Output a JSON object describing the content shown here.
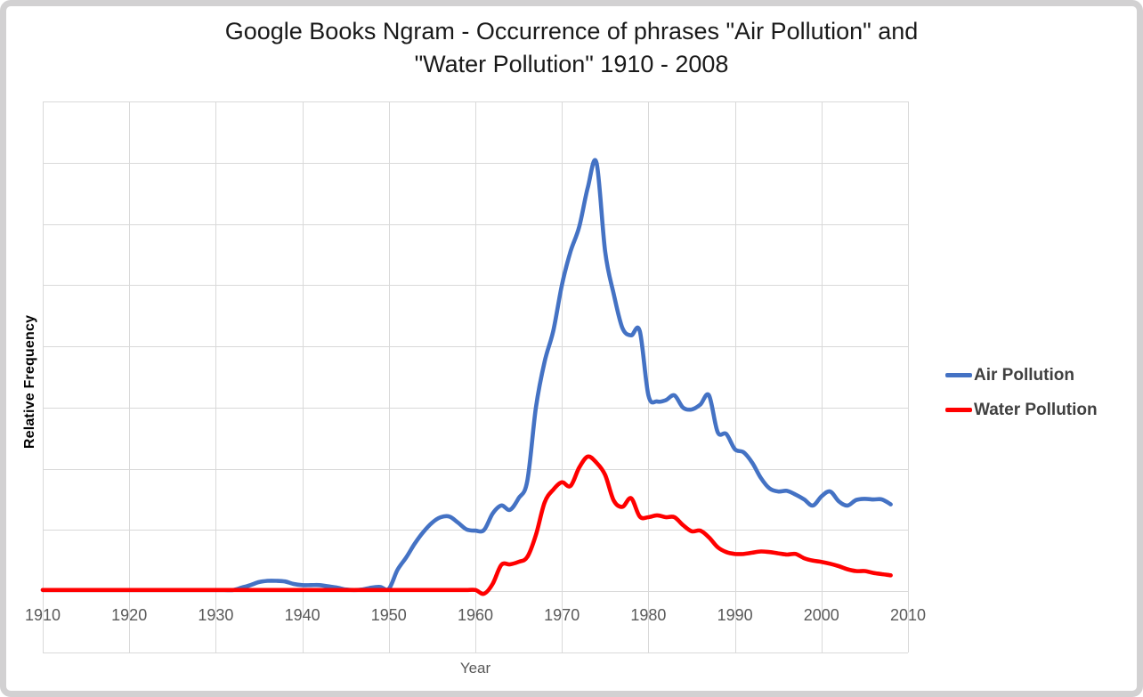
{
  "title": {
    "line1": "Google Books Ngram - Occurrence of phrases \"Air Pollution\" and",
    "line2": "\"Water Pollution\" 1910 - 2008"
  },
  "axes": {
    "x_title": "Year",
    "y_title": "Relative Frequency",
    "x_tick_labels": [
      "1910",
      "1920",
      "1930",
      "1940",
      "1950",
      "1960",
      "1970",
      "1980",
      "1990",
      "2000",
      "2010"
    ]
  },
  "legend": {
    "entries": [
      {
        "label": "Air Pollution",
        "color": "#4472C4"
      },
      {
        "label": "Water Pollution",
        "color": "#FF0000"
      }
    ]
  },
  "colors": {
    "background": "#FFFFFF",
    "frame": "#D2D1D2",
    "gridline": "#D9D9D9",
    "tick_label": "#595959",
    "x_axis_title": "#595959",
    "y_axis_title": "#000000",
    "title_text": "#1A1A1A",
    "legend_text": "#404040",
    "air_pollution_line": "#4472C4",
    "water_pollution_line": "#FF0000"
  },
  "chart_data": {
    "type": "line",
    "title": "Google Books Ngram - Occurrence of phrases \"Air Pollution\" and \"Water Pollution\" 1910 - 2008",
    "xlabel": "Year",
    "ylabel": "Relative Frequency",
    "x_start": 1910,
    "x_end": 2008,
    "xticks": [
      1910,
      1920,
      1930,
      1940,
      1950,
      1960,
      1970,
      1980,
      1990,
      2000,
      2010
    ],
    "ylim": [
      -1,
      8
    ],
    "y_gridline_step": 1,
    "y_tick_labels_visible": false,
    "grid": true,
    "line_style": "smooth",
    "legend_position": "right",
    "y_values_unit_note": "y-axis has no numeric labels; values below are in horizontal-gridline units read from the plot (0 = baseline gridline, 1 per gridline)",
    "series": [
      {
        "name": "Air Pollution",
        "color": "#4472C4",
        "values": [
          0.02,
          0.02,
          0.02,
          0.02,
          0.02,
          0.02,
          0.02,
          0.02,
          0.02,
          0.02,
          0.02,
          0.02,
          0.02,
          0.02,
          0.02,
          0.02,
          0.02,
          0.02,
          0.02,
          0.02,
          0.02,
          0.02,
          0.02,
          0.06,
          0.1,
          0.15,
          0.17,
          0.17,
          0.16,
          0.12,
          0.1,
          0.1,
          0.1,
          0.08,
          0.06,
          0.03,
          0.02,
          0.03,
          0.06,
          0.07,
          0.04,
          0.35,
          0.55,
          0.78,
          0.97,
          1.12,
          1.21,
          1.22,
          1.12,
          1.01,
          0.99,
          1.0,
          1.27,
          1.4,
          1.33,
          1.52,
          1.8,
          3.0,
          3.75,
          4.25,
          5.0,
          5.55,
          5.95,
          6.6,
          7.0,
          5.55,
          4.85,
          4.3,
          4.18,
          4.25,
          3.2,
          3.1,
          3.12,
          3.2,
          3.0,
          2.97,
          3.05,
          3.2,
          2.6,
          2.57,
          2.32,
          2.27,
          2.1,
          1.85,
          1.68,
          1.63,
          1.64,
          1.58,
          1.5,
          1.4,
          1.55,
          1.63,
          1.47,
          1.4,
          1.49,
          1.51,
          1.5,
          1.5,
          1.42
        ]
      },
      {
        "name": "Water Pollution",
        "color": "#FF0000",
        "values": [
          0.02,
          0.02,
          0.02,
          0.02,
          0.02,
          0.02,
          0.02,
          0.02,
          0.02,
          0.02,
          0.02,
          0.02,
          0.02,
          0.02,
          0.02,
          0.02,
          0.02,
          0.02,
          0.02,
          0.02,
          0.02,
          0.02,
          0.02,
          0.02,
          0.02,
          0.02,
          0.02,
          0.02,
          0.02,
          0.02,
          0.02,
          0.02,
          0.02,
          0.02,
          0.02,
          0.02,
          0.02,
          0.02,
          0.02,
          0.02,
          0.02,
          0.02,
          0.02,
          0.02,
          0.02,
          0.02,
          0.02,
          0.02,
          0.02,
          0.02,
          0.02,
          -0.04,
          0.12,
          0.43,
          0.44,
          0.48,
          0.56,
          0.92,
          1.45,
          1.66,
          1.78,
          1.72,
          2.02,
          2.2,
          2.1,
          1.9,
          1.48,
          1.38,
          1.52,
          1.22,
          1.21,
          1.24,
          1.21,
          1.21,
          1.08,
          0.98,
          0.99,
          0.88,
          0.72,
          0.64,
          0.61,
          0.61,
          0.63,
          0.65,
          0.64,
          0.62,
          0.6,
          0.61,
          0.54,
          0.5,
          0.48,
          0.45,
          0.41,
          0.36,
          0.33,
          0.33,
          0.3,
          0.28,
          0.26
        ]
      }
    ]
  }
}
